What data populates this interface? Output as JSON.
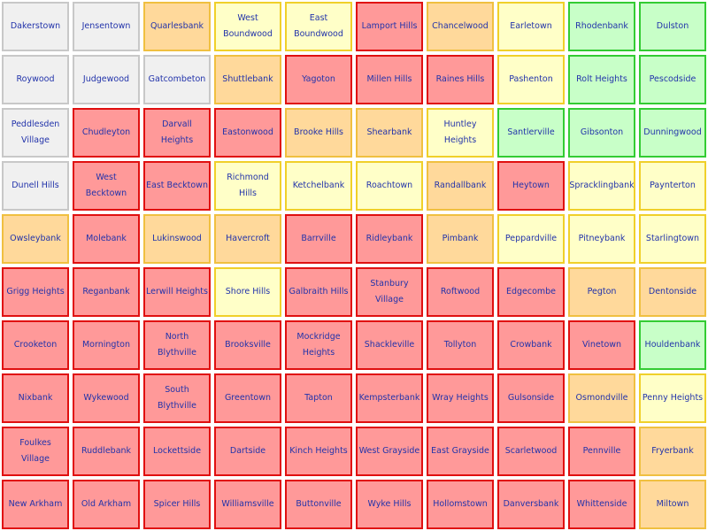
{
  "palette": {
    "gray": {
      "fill": "#f0f0f0",
      "border": "#c8c8c8"
    },
    "orange": {
      "fill": "#ffd99b",
      "border": "#f0c040"
    },
    "lyellow": {
      "fill": "#ffffc8",
      "border": "#f0d02a"
    },
    "red": {
      "fill": "#ff9999",
      "border": "#e01010"
    },
    "green": {
      "fill": "#c8ffc8",
      "border": "#33cc33"
    }
  },
  "grid": [
    [
      {
        "name": "Dakerstown",
        "color": "gray"
      },
      {
        "name": "Jensentown",
        "color": "gray"
      },
      {
        "name": "Quarlesbank",
        "color": "orange"
      },
      {
        "name": "West Boundwood",
        "color": "lyellow"
      },
      {
        "name": "East Boundwood",
        "color": "lyellow"
      },
      {
        "name": "Lamport Hills",
        "color": "red"
      },
      {
        "name": "Chancelwood",
        "color": "orange"
      },
      {
        "name": "Earletown",
        "color": "lyellow"
      },
      {
        "name": "Rhodenbank",
        "color": "green"
      },
      {
        "name": "Dulston",
        "color": "green"
      }
    ],
    [
      {
        "name": "Roywood",
        "color": "gray"
      },
      {
        "name": "Judgewood",
        "color": "gray"
      },
      {
        "name": "Gatcombeton",
        "color": "gray"
      },
      {
        "name": "Shuttlebank",
        "color": "orange"
      },
      {
        "name": "Yagoton",
        "color": "red"
      },
      {
        "name": "Millen Hills",
        "color": "red"
      },
      {
        "name": "Raines Hills",
        "color": "red"
      },
      {
        "name": "Pashenton",
        "color": "lyellow"
      },
      {
        "name": "Rolt Heights",
        "color": "green"
      },
      {
        "name": "Pescodside",
        "color": "green"
      }
    ],
    [
      {
        "name": "Peddlesden Village",
        "color": "gray"
      },
      {
        "name": "Chudleyton",
        "color": "red"
      },
      {
        "name": "Darvall Heights",
        "color": "red"
      },
      {
        "name": "Eastonwood",
        "color": "red"
      },
      {
        "name": "Brooke Hills",
        "color": "orange"
      },
      {
        "name": "Shearbank",
        "color": "orange"
      },
      {
        "name": "Huntley Heights",
        "color": "lyellow"
      },
      {
        "name": "Santlerville",
        "color": "green"
      },
      {
        "name": "Gibsonton",
        "color": "green"
      },
      {
        "name": "Dunningwood",
        "color": "green"
      }
    ],
    [
      {
        "name": "Dunell Hills",
        "color": "gray"
      },
      {
        "name": "West Becktown",
        "color": "red"
      },
      {
        "name": "East Becktown",
        "color": "red"
      },
      {
        "name": "Richmond Hills",
        "color": "lyellow"
      },
      {
        "name": "Ketchelbank",
        "color": "lyellow"
      },
      {
        "name": "Roachtown",
        "color": "lyellow"
      },
      {
        "name": "Randallbank",
        "color": "orange"
      },
      {
        "name": "Heytown",
        "color": "red"
      },
      {
        "name": "Spracklingbank",
        "color": "lyellow"
      },
      {
        "name": "Paynterton",
        "color": "lyellow"
      }
    ],
    [
      {
        "name": "Owsleybank",
        "color": "orange"
      },
      {
        "name": "Molebank",
        "color": "red"
      },
      {
        "name": "Lukinswood",
        "color": "orange"
      },
      {
        "name": "Havercroft",
        "color": "orange"
      },
      {
        "name": "Barrville",
        "color": "red"
      },
      {
        "name": "Ridleybank",
        "color": "red"
      },
      {
        "name": "Pimbank",
        "color": "orange"
      },
      {
        "name": "Peppardville",
        "color": "lyellow"
      },
      {
        "name": "Pitneybank",
        "color": "lyellow"
      },
      {
        "name": "Starlingtown",
        "color": "lyellow"
      }
    ],
    [
      {
        "name": "Grigg Heights",
        "color": "red"
      },
      {
        "name": "Reganbank",
        "color": "red"
      },
      {
        "name": "Lerwill Heights",
        "color": "red"
      },
      {
        "name": "Shore Hills",
        "color": "lyellow"
      },
      {
        "name": "Galbraith Hills",
        "color": "red"
      },
      {
        "name": "Stanbury Village",
        "color": "red"
      },
      {
        "name": "Roftwood",
        "color": "red"
      },
      {
        "name": "Edgecombe",
        "color": "red"
      },
      {
        "name": "Pegton",
        "color": "orange"
      },
      {
        "name": "Dentonside",
        "color": "orange"
      }
    ],
    [
      {
        "name": "Crooketon",
        "color": "red"
      },
      {
        "name": "Mornington",
        "color": "red"
      },
      {
        "name": "North Blythville",
        "color": "red"
      },
      {
        "name": "Brooksville",
        "color": "red"
      },
      {
        "name": "Mockridge Heights",
        "color": "red"
      },
      {
        "name": "Shackleville",
        "color": "red"
      },
      {
        "name": "Tollyton",
        "color": "red"
      },
      {
        "name": "Crowbank",
        "color": "red"
      },
      {
        "name": "Vinetown",
        "color": "red"
      },
      {
        "name": "Houldenbank",
        "color": "green"
      }
    ],
    [
      {
        "name": "Nixbank",
        "color": "red"
      },
      {
        "name": "Wykewood",
        "color": "red"
      },
      {
        "name": "South Blythville",
        "color": "red"
      },
      {
        "name": "Greentown",
        "color": "red"
      },
      {
        "name": "Tapton",
        "color": "red"
      },
      {
        "name": "Kempsterbank",
        "color": "red"
      },
      {
        "name": "Wray Heights",
        "color": "red"
      },
      {
        "name": "Gulsonside",
        "color": "red"
      },
      {
        "name": "Osmondville",
        "color": "orange"
      },
      {
        "name": "Penny Heights",
        "color": "lyellow"
      }
    ],
    [
      {
        "name": "Foulkes Village",
        "color": "red"
      },
      {
        "name": "Ruddlebank",
        "color": "red"
      },
      {
        "name": "Lockettside",
        "color": "red"
      },
      {
        "name": "Dartside",
        "color": "red"
      },
      {
        "name": "Kinch Heights",
        "color": "red"
      },
      {
        "name": "West Grayside",
        "color": "red"
      },
      {
        "name": "East Grayside",
        "color": "red"
      },
      {
        "name": "Scarletwood",
        "color": "red"
      },
      {
        "name": "Pennville",
        "color": "red"
      },
      {
        "name": "Fryerbank",
        "color": "orange"
      }
    ],
    [
      {
        "name": "New Arkham",
        "color": "red"
      },
      {
        "name": "Old Arkham",
        "color": "red"
      },
      {
        "name": "Spicer Hills",
        "color": "red"
      },
      {
        "name": "Williamsville",
        "color": "red"
      },
      {
        "name": "Buttonville",
        "color": "red"
      },
      {
        "name": "Wyke Hills",
        "color": "red"
      },
      {
        "name": "Hollomstown",
        "color": "red"
      },
      {
        "name": "Danversbank",
        "color": "red"
      },
      {
        "name": "Whittenside",
        "color": "red"
      },
      {
        "name": "Miltown",
        "color": "orange"
      }
    ]
  ]
}
